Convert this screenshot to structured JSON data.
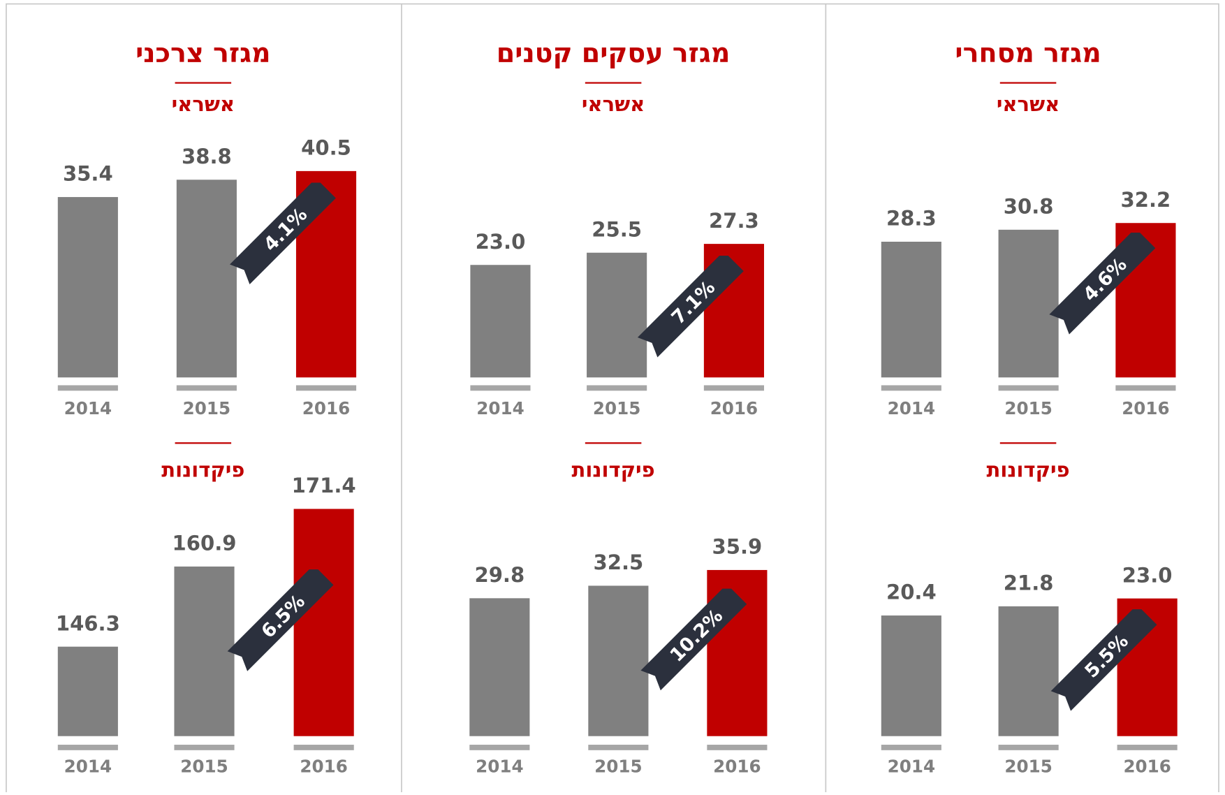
{
  "chart_data": [
    {
      "type": "bar",
      "title": "מגזר צרכני",
      "subtitle": "אשראי",
      "categories": [
        "2014",
        "2015",
        "2016"
      ],
      "values": [
        35.4,
        38.8,
        40.5
      ],
      "colors": [
        "#808080",
        "#808080",
        "#c00000"
      ],
      "annotation": "4.1%",
      "ylim": [
        0,
        48
      ]
    },
    {
      "type": "bar",
      "subtitle": "פיקדונות",
      "categories": [
        "2014",
        "2015",
        "2016"
      ],
      "values": [
        146.3,
        160.9,
        171.4
      ],
      "colors": [
        "#808080",
        "#808080",
        "#c00000"
      ],
      "annotation": "6.5%",
      "ylim": [
        130,
        173
      ]
    },
    {
      "type": "bar",
      "title": "מגזר עסקים קטנים",
      "subtitle": "אשראי",
      "categories": [
        "2014",
        "2015",
        "2016"
      ],
      "values": [
        23.0,
        25.5,
        27.3
      ],
      "value_labels": [
        "23.0",
        "25.5",
        "27.3"
      ],
      "colors": [
        "#808080",
        "#808080",
        "#c00000"
      ],
      "annotation": "7.1%",
      "ylim": [
        0,
        50
      ]
    },
    {
      "type": "bar",
      "subtitle": "פיקדונות",
      "categories": [
        "2014",
        "2015",
        "2016"
      ],
      "values": [
        29.8,
        32.5,
        35.9
      ],
      "colors": [
        "#808080",
        "#808080",
        "#c00000"
      ],
      "annotation": "10.2%",
      "ylim": [
        0,
        51
      ]
    },
    {
      "type": "bar",
      "title": "מגזר מסחרי",
      "subtitle": "אשראי",
      "categories": [
        "2014",
        "2015",
        "2016"
      ],
      "values": [
        28.3,
        30.8,
        32.2
      ],
      "colors": [
        "#808080",
        "#808080",
        "#c00000"
      ],
      "annotation": "4.6%",
      "ylim": [
        0,
        51
      ]
    },
    {
      "type": "bar",
      "subtitle": "פיקדונות",
      "categories": [
        "2014",
        "2015",
        "2016"
      ],
      "values": [
        20.4,
        21.8,
        23.0
      ],
      "value_labels": [
        "20.4",
        "21.8",
        "23.0"
      ],
      "colors": [
        "#808080",
        "#808080",
        "#c00000"
      ],
      "annotation": "5.5%",
      "ylim": [
        2,
        38
      ]
    }
  ]
}
